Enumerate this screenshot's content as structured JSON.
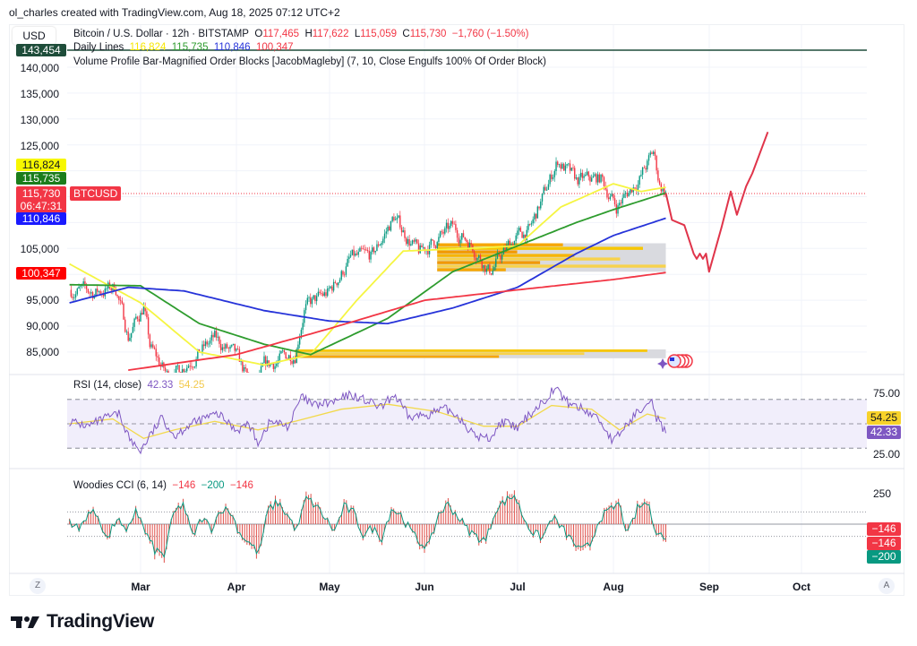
{
  "credit": "ol_charles created with TradingView.com, Aug 18, 2025 07:12 UTC+2",
  "currency_button": "USD",
  "symbol_legend": {
    "title": "Bitcoin / U.S. Dollar · 12h · BITSTAMP",
    "o_label": "O",
    "open": "117,465",
    "h_label": "H",
    "high": "117,622",
    "l_label": "L",
    "low": "115,059",
    "c_label": "C",
    "close": "115,730",
    "change": "−1,760 (−1.50%)"
  },
  "indicators": {
    "daily_lines": {
      "name": "Daily Lines",
      "v1": "116,824",
      "v2": "115,735",
      "v3": "110,846",
      "v4": "100,347"
    },
    "order_blocks": "Volume Profile Bar-Magnified Order Blocks [JacobMagleby] (7, 10, Close Engulfs 100% Of Order Block)",
    "rsi": {
      "name": "RSI (14, close)",
      "value": "42.33",
      "ma": "54.25"
    },
    "cci": {
      "name": "Woodies CCI (6, 14)",
      "v1": "−146",
      "v2": "−200",
      "v3": "−146"
    }
  },
  "price_scale": {
    "labels": [
      "140,000",
      "135,000",
      "130,000",
      "125,000",
      "105,000",
      "95,000",
      "90,000",
      "85,000"
    ],
    "tags": {
      "top_line": "143,454",
      "yellow": "116,824",
      "green": "115,735",
      "last_price": "115,730",
      "countdown": "06:47:31",
      "blue": "110,846",
      "red": "100,347"
    },
    "symbol_tag": "BTCUSD"
  },
  "rsi_scale": {
    "labels": [
      "75.00",
      "25.00"
    ],
    "tag_ma": "54.25",
    "tag_rsi": "42.33"
  },
  "cci_scale": {
    "labels": [
      "250"
    ],
    "tags": [
      "−146",
      "−146",
      "−200"
    ]
  },
  "time_axis": {
    "months": [
      "Mar",
      "Apr",
      "May",
      "Jun",
      "Jul",
      "Aug",
      "Sep",
      "Oct"
    ],
    "left_button": "Z",
    "right_button": "A"
  },
  "brand": "TradingView",
  "colors": {
    "up": "#089981",
    "down": "#f23645",
    "ma_yellow": "#f5f542",
    "ma_green": "#2e9c2e",
    "ma_blue": "#2633d9",
    "ma_red": "#f23645",
    "forecast": "#e0344a",
    "rsi": "#7e57c2",
    "rsi_ma": "#f2d94c",
    "top_line": "#1e4d3a"
  },
  "chart_data": [
    {
      "type": "candlestick",
      "interval": "12h",
      "ylim": [
        81500,
        145000
      ],
      "close_keypoints": [
        [
          "2025-02-06",
          97000
        ],
        [
          "2025-02-14",
          96500
        ],
        [
          "2025-02-21",
          97500
        ],
        [
          "2025-02-25",
          88000
        ],
        [
          "2025-03-02",
          94000
        ],
        [
          "2025-03-04",
          86000
        ],
        [
          "2025-03-10",
          80000
        ],
        [
          "2025-03-20",
          85000
        ],
        [
          "2025-03-25",
          87500
        ],
        [
          "2025-04-01",
          84000
        ],
        [
          "2025-04-07",
          77000
        ],
        [
          "2025-04-10",
          82000
        ],
        [
          "2025-04-20",
          85000
        ],
        [
          "2025-04-23",
          93500
        ],
        [
          "2025-05-01",
          96500
        ],
        [
          "2025-05-08",
          103000
        ],
        [
          "2025-05-15",
          103500
        ],
        [
          "2025-05-22",
          111000
        ],
        [
          "2025-05-30",
          104000
        ],
        [
          "2025-06-10",
          109000
        ],
        [
          "2025-06-16",
          106000
        ],
        [
          "2025-06-22",
          100500
        ],
        [
          "2025-06-30",
          107000
        ],
        [
          "2025-07-05",
          108500
        ],
        [
          "2025-07-10",
          116000
        ],
        [
          "2025-07-14",
          122000
        ],
        [
          "2025-07-20",
          118000
        ],
        [
          "2025-07-28",
          118500
        ],
        [
          "2025-08-02",
          113000
        ],
        [
          "2025-08-10",
          119000
        ],
        [
          "2025-08-14",
          123500
        ],
        [
          "2025-08-16",
          117500
        ],
        [
          "2025-08-18",
          115730
        ]
      ],
      "moving_averages": {
        "yellow": [
          [
            "2025-02-06",
            102000
          ],
          [
            "2025-03-01",
            94500
          ],
          [
            "2025-03-20",
            85000
          ],
          [
            "2025-04-10",
            82500
          ],
          [
            "2025-04-25",
            84500
          ],
          [
            "2025-05-10",
            95000
          ],
          [
            "2025-05-25",
            104500
          ],
          [
            "2025-06-15",
            105000
          ],
          [
            "2025-07-01",
            105500
          ],
          [
            "2025-07-15",
            113000
          ],
          [
            "2025-08-01",
            117500
          ],
          [
            "2025-08-10",
            116000
          ],
          [
            "2025-08-18",
            116824
          ]
        ],
        "green": [
          [
            "2025-02-06",
            98000
          ],
          [
            "2025-03-01",
            97800
          ],
          [
            "2025-03-20",
            90500
          ],
          [
            "2025-04-10",
            86500
          ],
          [
            "2025-04-25",
            84500
          ],
          [
            "2025-05-20",
            91500
          ],
          [
            "2025-06-10",
            100500
          ],
          [
            "2025-07-01",
            105500
          ],
          [
            "2025-07-20",
            110000
          ],
          [
            "2025-08-01",
            112500
          ],
          [
            "2025-08-18",
            115735
          ]
        ],
        "blue": [
          [
            "2025-02-06",
            94500
          ],
          [
            "2025-02-25",
            97500
          ],
          [
            "2025-03-15",
            96800
          ],
          [
            "2025-04-10",
            93000
          ],
          [
            "2025-05-01",
            91000
          ],
          [
            "2025-05-20",
            90500
          ],
          [
            "2025-06-10",
            93500
          ],
          [
            "2025-07-01",
            97500
          ],
          [
            "2025-07-20",
            104000
          ],
          [
            "2025-08-01",
            107500
          ],
          [
            "2025-08-18",
            110846
          ]
        ],
        "red": [
          [
            "2025-02-25",
            81500
          ],
          [
            "2025-04-01",
            84500
          ],
          [
            "2025-05-01",
            89500
          ],
          [
            "2025-06-01",
            95000
          ],
          [
            "2025-07-01",
            97000
          ],
          [
            "2025-08-01",
            99000
          ],
          [
            "2025-08-18",
            100347
          ]
        ]
      },
      "forecast_path": [
        [
          "2025-08-18",
          115730
        ],
        [
          "2025-08-20",
          110500
        ],
        [
          "2025-08-22",
          110000
        ],
        [
          "2025-08-24",
          109500
        ],
        [
          "2025-08-27",
          104000
        ],
        [
          "2025-08-28",
          103000
        ],
        [
          "2025-08-29",
          104000
        ],
        [
          "2025-08-30",
          103000
        ],
        [
          "2025-08-31",
          104000
        ],
        [
          "2025-09-01",
          100500
        ],
        [
          "2025-09-05",
          109000
        ],
        [
          "2025-09-08",
          116000
        ],
        [
          "2025-09-10",
          111500
        ],
        [
          "2025-09-13",
          117000
        ],
        [
          "2025-09-15",
          119500
        ],
        [
          "2025-09-20",
          127500
        ]
      ],
      "horizontal_line": 143454,
      "order_block_zones": [
        {
          "start": "2025-06-05",
          "end": "2025-08-18",
          "top": 106000,
          "bottom": 100500,
          "bars": [
            [
              105500,
              0.55,
              "#f7a600"
            ],
            [
              104800,
              0.9,
              "#f7c600"
            ],
            [
              104000,
              0.35,
              "#f29900"
            ],
            [
              103300,
              0.6,
              "#f7b500"
            ],
            [
              102600,
              0.8,
              "#f7d24c"
            ],
            [
              101900,
              0.45,
              "#f29900"
            ],
            [
              101200,
              1.0,
              "#f7d24c"
            ],
            [
              100700,
              0.3,
              "#f7a600"
            ]
          ]
        },
        {
          "start": "2025-04-20",
          "end": "2025-08-18",
          "top": 85500,
          "bottom": 83800,
          "bars": [
            [
              85100,
              0.95,
              "#f7c600"
            ],
            [
              84500,
              0.78,
              "#f7d24c"
            ],
            [
              84000,
              0.55,
              "#f7a600"
            ]
          ]
        }
      ]
    },
    {
      "type": "line",
      "name": "RSI (14, close)",
      "ylim": [
        15,
        85
      ],
      "bands": [
        30,
        50,
        70
      ],
      "rsi": [
        [
          "2025-02-06",
          52
        ],
        [
          "2025-02-12",
          48
        ],
        [
          "2025-02-18",
          55
        ],
        [
          "2025-02-22",
          58
        ],
        [
          "2025-02-26",
          35
        ],
        [
          "2025-03-01",
          28
        ],
        [
          "2025-03-04",
          40
        ],
        [
          "2025-03-08",
          55
        ],
        [
          "2025-03-12",
          40
        ],
        [
          "2025-03-16",
          48
        ],
        [
          "2025-03-22",
          55
        ],
        [
          "2025-03-26",
          58
        ],
        [
          "2025-04-01",
          45
        ],
        [
          "2025-04-05",
          50
        ],
        [
          "2025-04-08",
          35
        ],
        [
          "2025-04-12",
          52
        ],
        [
          "2025-04-18",
          48
        ],
        [
          "2025-04-22",
          72
        ],
        [
          "2025-04-26",
          65
        ],
        [
          "2025-05-03",
          68
        ],
        [
          "2025-05-08",
          74
        ],
        [
          "2025-05-12",
          70
        ],
        [
          "2025-05-18",
          63
        ],
        [
          "2025-05-22",
          74
        ],
        [
          "2025-05-27",
          55
        ],
        [
          "2025-06-02",
          58
        ],
        [
          "2025-06-08",
          62
        ],
        [
          "2025-06-12",
          56
        ],
        [
          "2025-06-17",
          40
        ],
        [
          "2025-06-22",
          38
        ],
        [
          "2025-06-26",
          52
        ],
        [
          "2025-07-01",
          46
        ],
        [
          "2025-07-05",
          58
        ],
        [
          "2025-07-10",
          70
        ],
        [
          "2025-07-13",
          80
        ],
        [
          "2025-07-17",
          68
        ],
        [
          "2025-07-22",
          62
        ],
        [
          "2025-07-27",
          55
        ],
        [
          "2025-08-01",
          35
        ],
        [
          "2025-08-04",
          45
        ],
        [
          "2025-08-09",
          60
        ],
        [
          "2025-08-13",
          72
        ],
        [
          "2025-08-15",
          55
        ],
        [
          "2025-08-18",
          42.33
        ]
      ],
      "rsi_ma": [
        [
          "2025-02-06",
          50
        ],
        [
          "2025-02-20",
          54
        ],
        [
          "2025-03-02",
          38
        ],
        [
          "2025-03-12",
          45
        ],
        [
          "2025-03-25",
          52
        ],
        [
          "2025-04-08",
          45
        ],
        [
          "2025-04-20",
          52
        ],
        [
          "2025-05-05",
          62
        ],
        [
          "2025-05-20",
          66
        ],
        [
          "2025-06-05",
          60
        ],
        [
          "2025-06-20",
          48
        ],
        [
          "2025-07-01",
          48
        ],
        [
          "2025-07-12",
          65
        ],
        [
          "2025-07-25",
          62
        ],
        [
          "2025-08-03",
          45
        ],
        [
          "2025-08-12",
          58
        ],
        [
          "2025-08-18",
          54.25
        ]
      ]
    },
    {
      "type": "bar",
      "name": "Woodies CCI (6, 14)",
      "ylim": [
        -330,
        330
      ],
      "start": "2025-02-06",
      "end": "2025-08-18",
      "cci": [
        40,
        -60,
        120,
        80,
        -150,
        60,
        -100,
        150,
        -80,
        -250,
        -300,
        100,
        200,
        -120,
        60,
        -40,
        150,
        120,
        -90,
        -180,
        -280,
        140,
        210,
        90,
        -60,
        250,
        180,
        60,
        -70,
        170,
        110,
        -100,
        -40,
        -130,
        150,
        90,
        -60,
        -180,
        -210,
        100,
        190,
        80,
        -50,
        -120,
        -160,
        140,
        220,
        280,
        60,
        -90,
        -130,
        70,
        -40,
        -150,
        -260,
        -200,
        60,
        120,
        200,
        -100,
        150,
        210,
        -60,
        -146
      ]
    }
  ]
}
